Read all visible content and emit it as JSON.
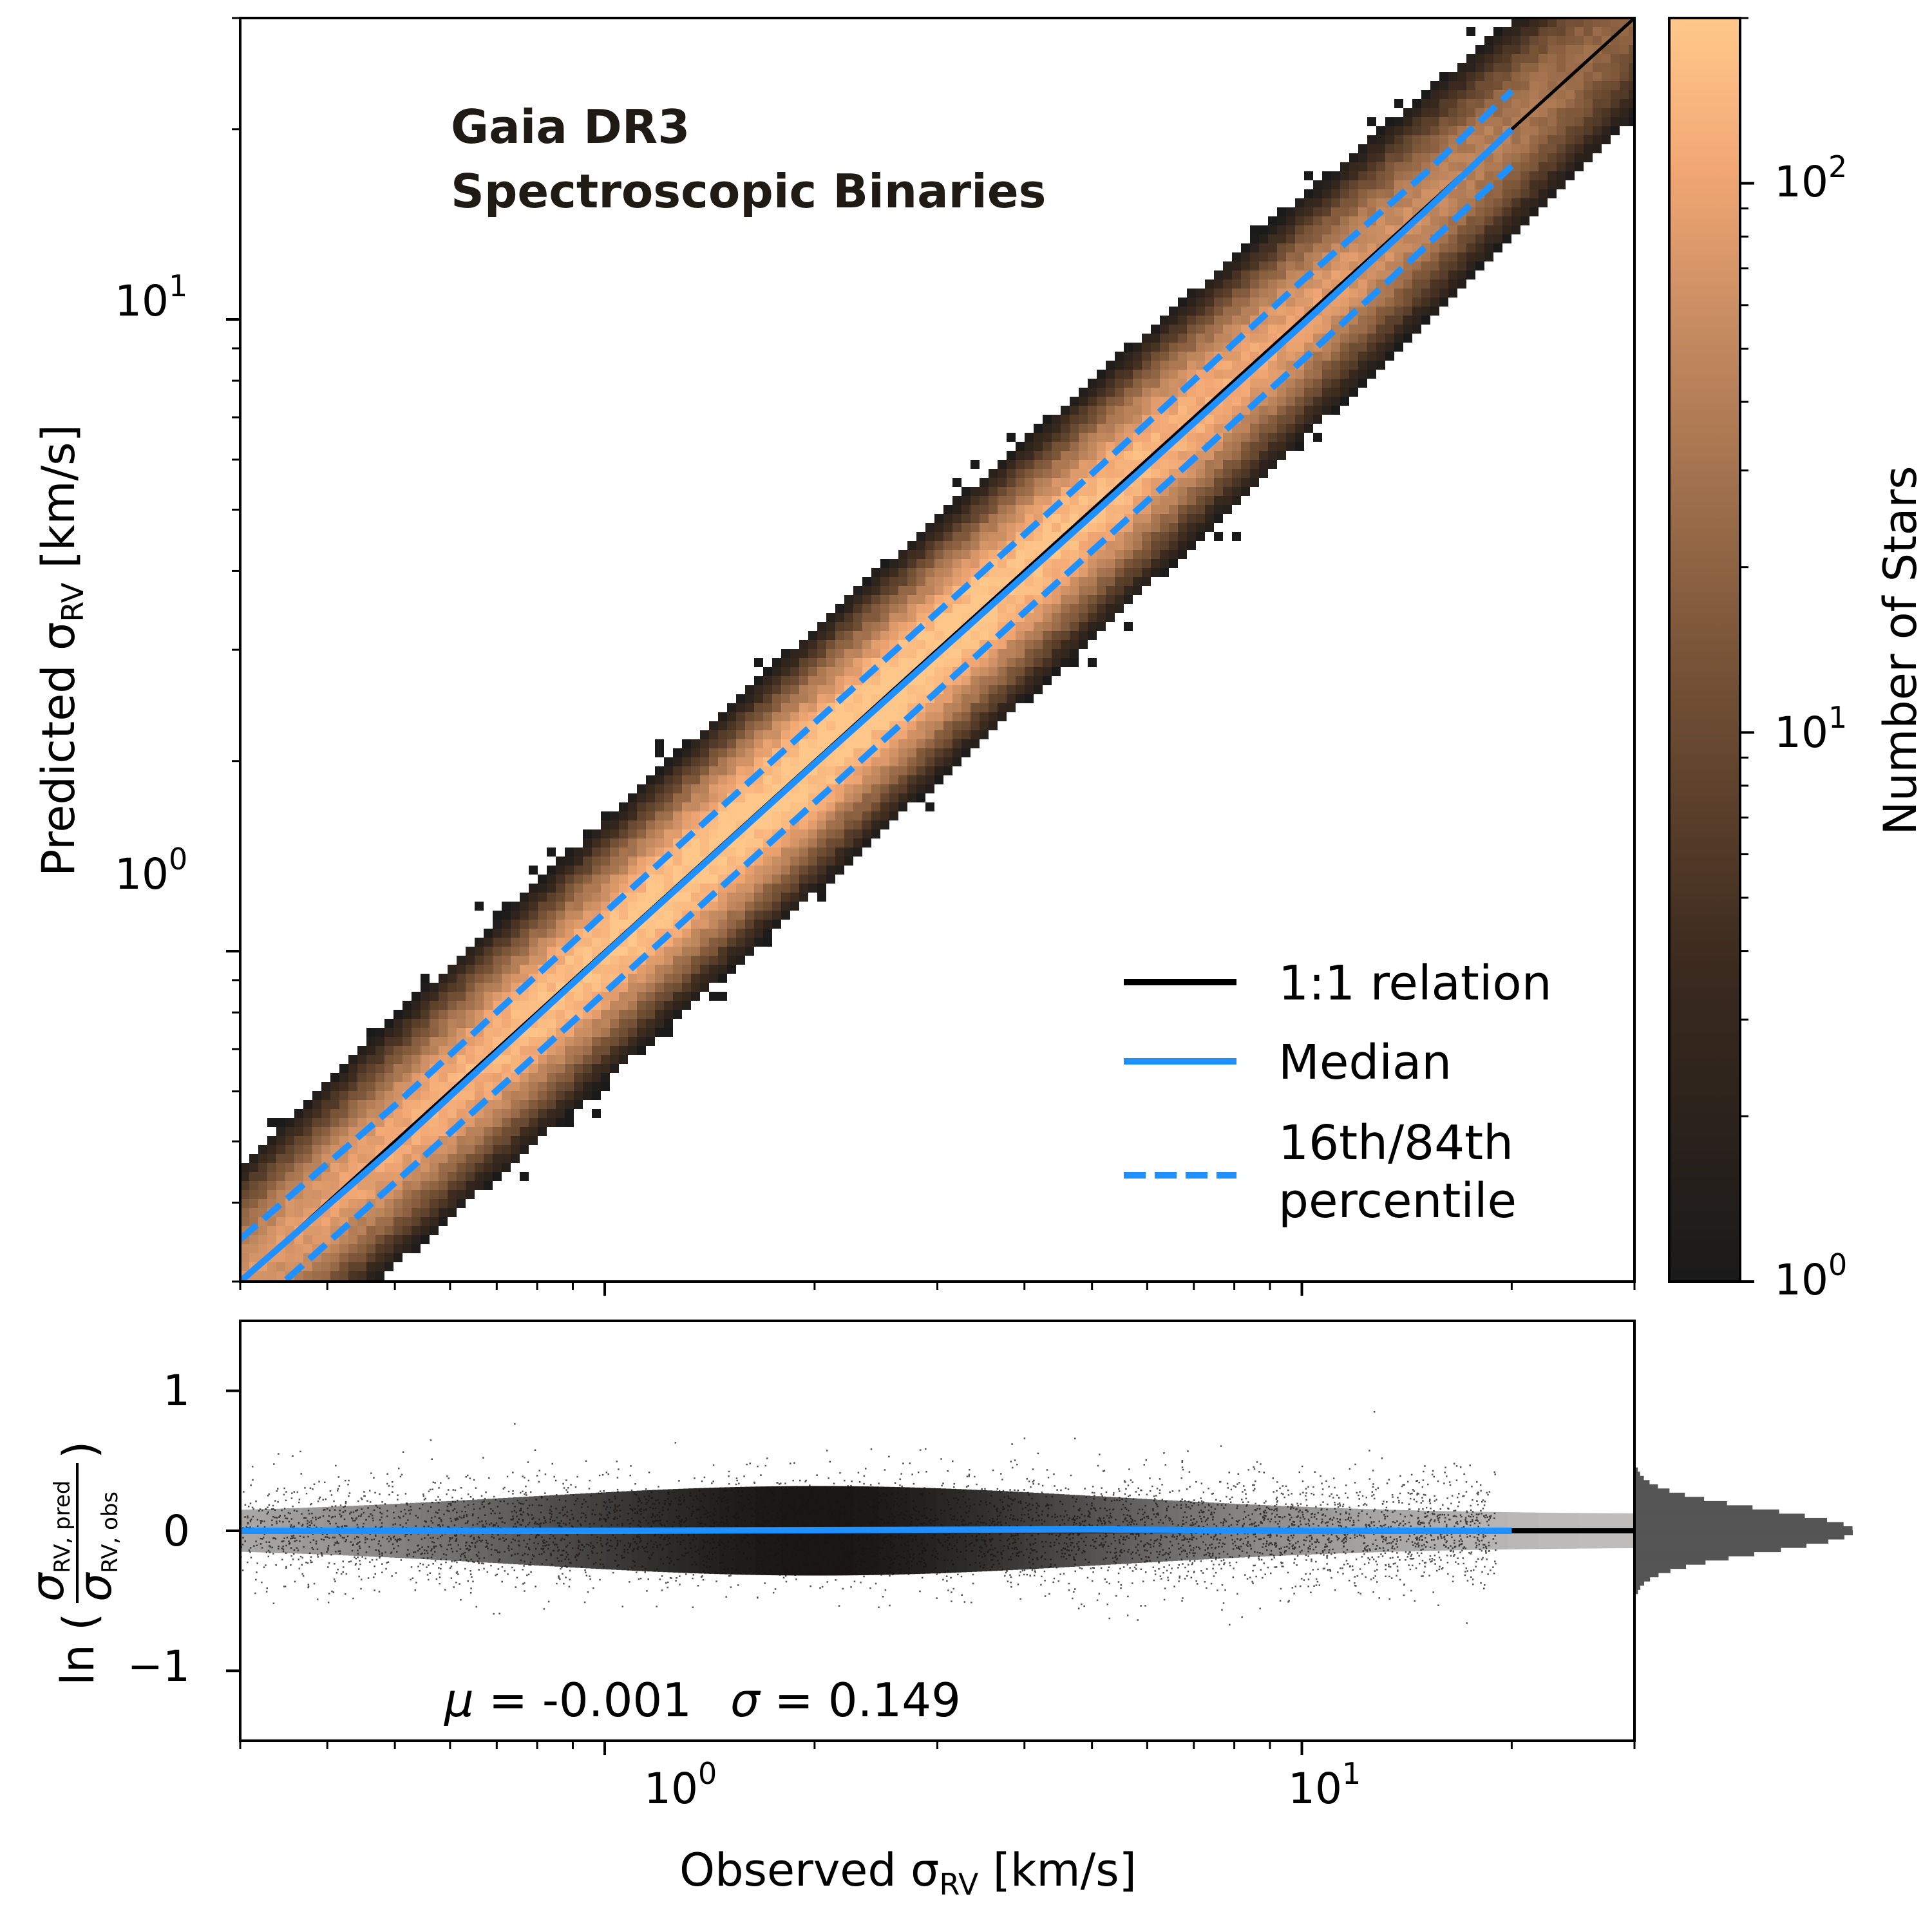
{
  "chart_data": [
    {
      "type": "heatmap",
      "title": "Gaia DR3\nSpectroscopic Binaries",
      "title_lines": [
        "Gaia DR3",
        "Spectroscopic Binaries"
      ],
      "xlabel": "Observed σ_RV [km/s]",
      "ylabel": "Predicted σ_RV [km/s]",
      "xscale": "log",
      "yscale": "log",
      "xlim": [
        0.3,
        30
      ],
      "ylim": [
        0.3,
        30
      ],
      "x_ticks": [
        "10^0",
        "10^1"
      ],
      "y_ticks": [
        "10^0",
        "10^1"
      ],
      "colorbar": {
        "label": "Number of Stars",
        "scale": "log",
        "range": [
          1,
          200
        ],
        "ticks": [
          "10^0",
          "10^1",
          "10^2"
        ],
        "colormap": "copper"
      },
      "series": [
        {
          "name": "1:1 relation",
          "style": "solid",
          "color": "#000000",
          "x": [
            0.3,
            30
          ],
          "y": [
            0.3,
            30
          ]
        },
        {
          "name": "Median",
          "style": "solid",
          "color": "#1e90ff",
          "x": [
            0.3,
            0.5,
            1.0,
            2.0,
            5.0,
            10.0,
            15.0,
            20.0
          ],
          "y": [
            0.3,
            0.49,
            0.99,
            1.98,
            4.9,
            9.8,
            14.8,
            20.0
          ]
        },
        {
          "name": "16th/84th percentile (upper)",
          "style": "dashed",
          "color": "#1e90ff",
          "x": [
            0.3,
            0.5,
            1.0,
            2.0,
            5.0,
            10.0,
            15.0,
            20.0
          ],
          "y": [
            0.35,
            0.57,
            1.15,
            2.3,
            5.7,
            11.5,
            17.0,
            23.0
          ]
        },
        {
          "name": "16th/84th percentile (lower)",
          "style": "dashed",
          "color": "#1e90ff",
          "x": [
            0.3,
            0.5,
            1.0,
            2.0,
            5.0,
            10.0,
            15.0,
            20.0
          ],
          "y": [
            0.26,
            0.43,
            0.86,
            1.72,
            4.3,
            8.6,
            13.0,
            17.5
          ]
        }
      ],
      "legend": {
        "placement": "lower-right",
        "entries": [
          "1:1 relation",
          "Median",
          "16th/84th",
          "percentile"
        ]
      }
    },
    {
      "type": "scatter",
      "xlabel": "Observed σ_RV [km/s]",
      "ylabel": "ln(σ_RV,pred / σ_RV,obs)",
      "xscale": "log",
      "xlim": [
        0.3,
        30
      ],
      "ylim": [
        -1.5,
        1.5
      ],
      "x_ticks": [
        "10^0",
        "10^1"
      ],
      "y_ticks": [
        "1",
        "0",
        "−1"
      ],
      "stats": {
        "mu": "-0.001",
        "sigma": "0.149"
      },
      "series": [
        {
          "name": "zero line",
          "style": "solid",
          "color": "#000000",
          "x": [
            0.3,
            30
          ],
          "y": [
            0,
            0
          ]
        },
        {
          "name": "Median",
          "style": "solid",
          "color": "#1e90ff",
          "x": [
            0.3,
            1.0,
            5.0,
            10.0,
            20.0
          ],
          "y": [
            0.0,
            0.0,
            0.01,
            0.0,
            0.0
          ]
        }
      ],
      "marginal_histogram": {
        "orientation": "horizontal",
        "mean": -0.001,
        "std": 0.149,
        "color": "#555555"
      }
    }
  ],
  "text": {
    "title_line1": "Gaia DR3",
    "title_line2": "Spectroscopic Binaries",
    "legend_one_to_one": "1:1 relation",
    "legend_median": "Median",
    "legend_pct_line1": "16th/84th",
    "legend_pct_line2": "percentile",
    "ylabel_top_prefix": "Predicted σ",
    "ylabel_top_sub": "RV",
    "ylabel_top_suffix": " [km/s]",
    "xlabel_prefix": "Observed σ",
    "xlabel_sub": "RV",
    "xlabel_suffix": " [km/s]",
    "colorbar_label": "Number of Stars",
    "ylabel_bottom_ln": "ln",
    "ylabel_bottom_num": "σ",
    "ylabel_bottom_num_sub": "RV, pred",
    "ylabel_bottom_den": "σ",
    "ylabel_bottom_den_sub": "RV, obs",
    "stats_mu_label": "μ",
    "stats_mu_value": " = -0.001",
    "stats_sigma_label": "σ",
    "stats_sigma_value": " = 0.149",
    "tick_base": "10",
    "tick_exp0": "0",
    "tick_exp1": "1",
    "tick_exp2": "2",
    "ytick_pos1": "1",
    "ytick_zero": "0",
    "ytick_neg1": "−1"
  }
}
